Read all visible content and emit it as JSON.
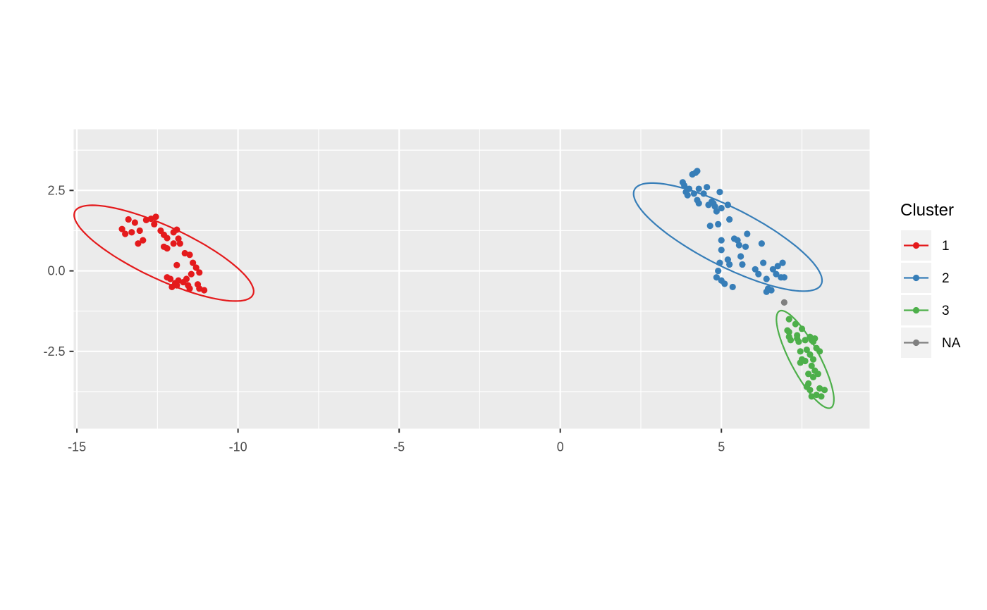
{
  "chart_data": {
    "type": "scatter",
    "title": "",
    "xlabel": "",
    "ylabel": "",
    "xlim": [
      -15.1,
      9.6
    ],
    "ylim": [
      -4.9,
      4.4
    ],
    "x_ticks": [
      -15,
      -10,
      -5,
      0,
      5
    ],
    "x_tick_labels": [
      "-15",
      "-10",
      "-5",
      "0",
      "5"
    ],
    "y_ticks": [
      -2.5,
      0,
      2.5
    ],
    "y_tick_labels": [
      "-2.5",
      "0.0",
      "2.5"
    ],
    "grid": true,
    "legend": {
      "title": "Cluster",
      "position": "right",
      "entries": [
        "1",
        "2",
        "3",
        "NA"
      ]
    },
    "series": [
      {
        "name": "1",
        "color": "#E41A1C",
        "ellipse": {
          "cx": -12.3,
          "cy": 0.55,
          "a": 3.05,
          "b": 0.82,
          "angle_deg": -25
        },
        "points": [
          [
            -13.4,
            1.6
          ],
          [
            -13.2,
            1.5
          ],
          [
            -13.05,
            1.25
          ],
          [
            -12.85,
            1.58
          ],
          [
            -12.7,
            1.62
          ],
          [
            -12.55,
            1.68
          ],
          [
            -12.6,
            1.45
          ],
          [
            -12.4,
            1.25
          ],
          [
            -12.3,
            1.12
          ],
          [
            -12.2,
            1.02
          ],
          [
            -12.0,
            1.2
          ],
          [
            -11.9,
            1.28
          ],
          [
            -13.6,
            1.3
          ],
          [
            -13.5,
            1.15
          ],
          [
            -13.3,
            1.2
          ],
          [
            -13.1,
            0.85
          ],
          [
            -12.95,
            0.95
          ],
          [
            -12.3,
            0.75
          ],
          [
            -12.2,
            0.7
          ],
          [
            -12.0,
            0.85
          ],
          [
            -11.85,
            1.0
          ],
          [
            -11.8,
            0.85
          ],
          [
            -11.65,
            0.55
          ],
          [
            -11.5,
            0.5
          ],
          [
            -11.4,
            0.25
          ],
          [
            -11.3,
            0.1
          ],
          [
            -11.2,
            -0.05
          ],
          [
            -11.45,
            -0.1
          ],
          [
            -11.6,
            -0.25
          ],
          [
            -11.7,
            -0.35
          ],
          [
            -11.9,
            0.18
          ],
          [
            -12.2,
            -0.2
          ],
          [
            -12.1,
            -0.25
          ],
          [
            -11.95,
            -0.38
          ],
          [
            -11.85,
            -0.3
          ],
          [
            -11.9,
            -0.45
          ],
          [
            -12.05,
            -0.5
          ],
          [
            -11.55,
            -0.45
          ],
          [
            -11.5,
            -0.55
          ],
          [
            -11.25,
            -0.42
          ],
          [
            -11.2,
            -0.55
          ],
          [
            -11.05,
            -0.6
          ]
        ]
      },
      {
        "name": "2",
        "color": "#377EB8",
        "ellipse": {
          "cx": 5.2,
          "cy": 1.05,
          "a": 3.25,
          "b": 0.9,
          "angle_deg": -27
        },
        "points": [
          [
            3.8,
            2.75
          ],
          [
            3.85,
            2.65
          ],
          [
            3.9,
            2.45
          ],
          [
            3.95,
            2.35
          ],
          [
            4.0,
            2.55
          ],
          [
            4.1,
            3.0
          ],
          [
            4.2,
            3.05
          ],
          [
            4.25,
            3.1
          ],
          [
            4.15,
            2.4
          ],
          [
            4.3,
            2.55
          ],
          [
            4.25,
            2.2
          ],
          [
            4.3,
            2.1
          ],
          [
            4.45,
            2.4
          ],
          [
            4.55,
            2.6
          ],
          [
            4.6,
            2.05
          ],
          [
            4.7,
            2.15
          ],
          [
            4.8,
            2.0
          ],
          [
            4.85,
            1.85
          ],
          [
            4.95,
            2.45
          ],
          [
            5.0,
            1.95
          ],
          [
            5.2,
            2.05
          ],
          [
            5.25,
            1.6
          ],
          [
            4.65,
            1.4
          ],
          [
            4.9,
            1.45
          ],
          [
            5.0,
            0.95
          ],
          [
            5.0,
            0.65
          ],
          [
            5.2,
            0.35
          ],
          [
            5.25,
            0.2
          ],
          [
            4.95,
            0.25
          ],
          [
            4.9,
            0.0
          ],
          [
            4.85,
            -0.2
          ],
          [
            5.0,
            -0.3
          ],
          [
            5.1,
            -0.4
          ],
          [
            5.35,
            -0.5
          ],
          [
            5.4,
            1.0
          ],
          [
            5.55,
            0.8
          ],
          [
            5.6,
            0.45
          ],
          [
            5.65,
            0.2
          ],
          [
            5.8,
            1.15
          ],
          [
            5.75,
            0.75
          ],
          [
            6.05,
            0.05
          ],
          [
            6.15,
            -0.1
          ],
          [
            6.25,
            0.85
          ],
          [
            6.3,
            0.25
          ],
          [
            6.4,
            -0.25
          ],
          [
            6.45,
            -0.55
          ],
          [
            6.4,
            -0.65
          ],
          [
            6.55,
            -0.6
          ],
          [
            6.6,
            0.05
          ],
          [
            6.7,
            -0.1
          ],
          [
            6.75,
            0.15
          ],
          [
            6.9,
            0.25
          ],
          [
            6.85,
            -0.2
          ],
          [
            6.95,
            -0.2
          ],
          [
            5.5,
            0.95
          ],
          [
            4.75,
            2.1
          ]
        ]
      },
      {
        "name": "3",
        "color": "#4DAF4A",
        "ellipse": {
          "cx": 7.6,
          "cy": -2.75,
          "a": 1.7,
          "b": 0.45,
          "angle_deg": -62
        },
        "points": [
          [
            7.1,
            -1.5
          ],
          [
            7.3,
            -1.65
          ],
          [
            7.35,
            -2.0
          ],
          [
            7.1,
            -1.9
          ],
          [
            7.05,
            -1.85
          ],
          [
            7.1,
            -2.05
          ],
          [
            7.15,
            -2.15
          ],
          [
            7.35,
            -2.1
          ],
          [
            7.5,
            -1.8
          ],
          [
            7.4,
            -2.2
          ],
          [
            7.6,
            -2.15
          ],
          [
            7.75,
            -2.05
          ],
          [
            7.8,
            -2.15
          ],
          [
            7.85,
            -2.2
          ],
          [
            7.9,
            -2.1
          ],
          [
            7.45,
            -2.5
          ],
          [
            7.65,
            -2.45
          ],
          [
            7.5,
            -2.75
          ],
          [
            7.45,
            -2.85
          ],
          [
            7.6,
            -2.8
          ],
          [
            7.75,
            -2.6
          ],
          [
            7.85,
            -2.75
          ],
          [
            7.95,
            -2.4
          ],
          [
            8.05,
            -2.5
          ],
          [
            7.8,
            -2.95
          ],
          [
            7.9,
            -3.1
          ],
          [
            8.0,
            -3.2
          ],
          [
            7.85,
            -3.3
          ],
          [
            7.7,
            -3.5
          ],
          [
            7.65,
            -3.6
          ],
          [
            7.75,
            -3.7
          ],
          [
            7.8,
            -3.9
          ],
          [
            7.95,
            -3.85
          ],
          [
            8.05,
            -3.65
          ],
          [
            8.1,
            -3.9
          ],
          [
            8.2,
            -3.7
          ],
          [
            7.7,
            -3.2
          ]
        ]
      },
      {
        "name": "NA",
        "color": "#808080",
        "points": [
          [
            6.95,
            -0.98
          ]
        ]
      }
    ]
  }
}
